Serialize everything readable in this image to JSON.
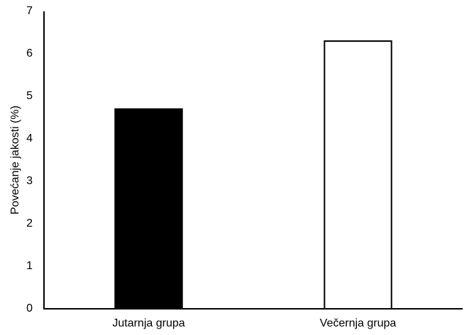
{
  "chart_data": {
    "type": "bar",
    "ylabel": "Povećanje jakosti (%)",
    "categories": [
      "Jutarnja grupa",
      "Večernja grupa"
    ],
    "values": [
      4.7,
      6.3
    ],
    "colors": [
      "#000000",
      "#ffffff"
    ],
    "edgecolor": "#000000",
    "ylim": [
      0,
      7
    ],
    "yticks": [
      0,
      1,
      2,
      3,
      4,
      5,
      6,
      7
    ],
    "grid": false
  }
}
